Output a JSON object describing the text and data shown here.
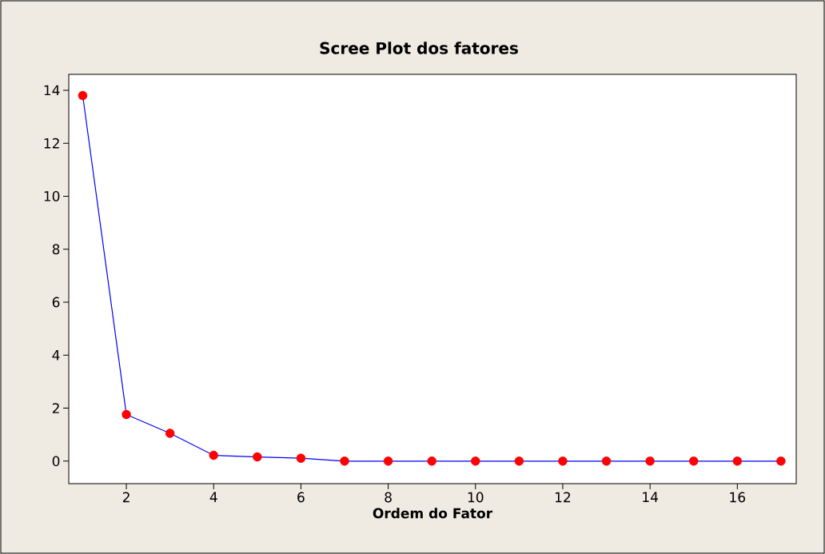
{
  "chart_data": {
    "type": "line",
    "title": "Scree Plot dos fatores",
    "xlabel": "Ordem do Fator",
    "x": [
      1,
      2,
      3,
      4,
      5,
      6,
      7,
      8,
      9,
      10,
      11,
      12,
      13,
      14,
      15,
      16,
      17
    ],
    "series": [
      {
        "color": "#0000ff",
        "colors": [
          "#ff0000",
          "#ff0000",
          "#ff0000",
          "#ff0000",
          "#ff0000",
          "#ff0000",
          "#ff0000",
          "#ff0000",
          "#ff0000",
          "#ff0000",
          "#ff0000",
          "#ff0000",
          "#ff0000",
          "#ff0000",
          "#ff0000",
          "#ff0000",
          "#ff0000"
        ],
        "values": [
          13.8,
          1.76,
          1.05,
          0.22,
          0.16,
          0.11,
          0,
          0,
          0,
          0,
          0,
          0,
          0,
          0,
          0,
          0,
          0
        ]
      }
    ],
    "xlim": [
      0.68,
      17.35
    ],
    "ylim": [
      -0.85,
      14.6
    ],
    "xticks": [
      2,
      4,
      6,
      8,
      10,
      12,
      14,
      16
    ],
    "yticks": [
      0,
      2,
      4,
      6,
      8,
      10,
      12,
      14
    ],
    "marker": "circle",
    "line_style": "solid"
  }
}
